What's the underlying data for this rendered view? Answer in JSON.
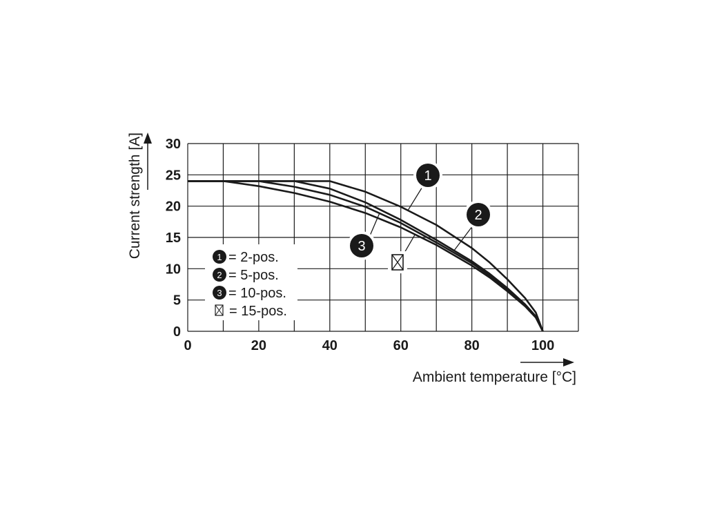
{
  "chart_data": {
    "type": "line",
    "xlabel": "Ambient temperature [°C]",
    "ylabel": "Current strength [A]",
    "xlim": [
      0,
      110
    ],
    "ylim": [
      0,
      30
    ],
    "x_ticks": [
      0,
      20,
      40,
      60,
      80,
      100
    ],
    "y_ticks": [
      0,
      5,
      10,
      15,
      20,
      25,
      30
    ],
    "grid": true,
    "series": [
      {
        "name": "1",
        "label": "2-pos.",
        "marker": "1",
        "x": [
          0,
          40,
          50,
          60,
          70,
          80,
          85,
          90,
          95,
          98,
          100
        ],
        "y": [
          24,
          24,
          22.3,
          19.9,
          17,
          13.3,
          11,
          8.3,
          5.3,
          3,
          0
        ]
      },
      {
        "name": "2",
        "label": "5-pos.",
        "marker": "2",
        "x": [
          0,
          30,
          40,
          50,
          60,
          70,
          80,
          85,
          90,
          95,
          98,
          100
        ],
        "y": [
          24,
          24,
          22.8,
          20.6,
          17.8,
          14.6,
          11.2,
          9.2,
          6.9,
          4.3,
          2.4,
          0
        ]
      },
      {
        "name": "3",
        "label": "10-pos.",
        "marker": "3",
        "x": [
          0,
          20,
          30,
          40,
          50,
          60,
          70,
          80,
          85,
          90,
          95,
          98,
          100
        ],
        "y": [
          24,
          24,
          23.1,
          21.8,
          19.9,
          17.3,
          14.2,
          10.9,
          8.9,
          6.6,
          4.1,
          2.3,
          0
        ]
      },
      {
        "name": "x",
        "label": "15-pos.",
        "marker": "x",
        "x": [
          0,
          10,
          20,
          30,
          40,
          50,
          60,
          70,
          80,
          85,
          90,
          95,
          98,
          100
        ],
        "y": [
          24,
          24,
          23.2,
          22.1,
          20.7,
          18.9,
          16.6,
          13.8,
          10.5,
          8.6,
          6.4,
          4,
          2.2,
          0
        ]
      }
    ],
    "legend_position": "bottom-left",
    "callout_labels": [
      "1",
      "2",
      "3"
    ]
  }
}
